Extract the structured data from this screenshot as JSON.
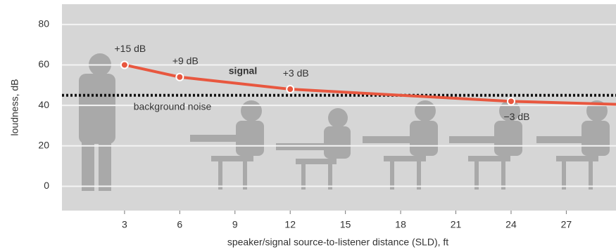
{
  "chart_data": {
    "type": "line",
    "x_label": "speaker/signal source-to-listener distance (SLD), ft",
    "y_label": "loudness, dB",
    "xlim": [
      -0.4,
      29.7
    ],
    "ylim": [
      -12,
      90
    ],
    "xticks": [
      3,
      6,
      9,
      12,
      15,
      18,
      21,
      24,
      27
    ],
    "yticks": [
      0,
      20,
      40,
      60,
      80
    ],
    "grid": true,
    "series": [
      {
        "name": "signal",
        "color": "#e8573f",
        "x": [
          3,
          6,
          12,
          24,
          29.7
        ],
        "values": [
          60,
          54,
          48,
          42,
          40.5
        ],
        "value_labels": [
          "+15 dB",
          "+9 dB",
          "+3 dB",
          "−3 dB",
          null
        ]
      }
    ],
    "reference_line": {
      "name": "background noise",
      "value": 45,
      "color": "#111111"
    }
  }
}
